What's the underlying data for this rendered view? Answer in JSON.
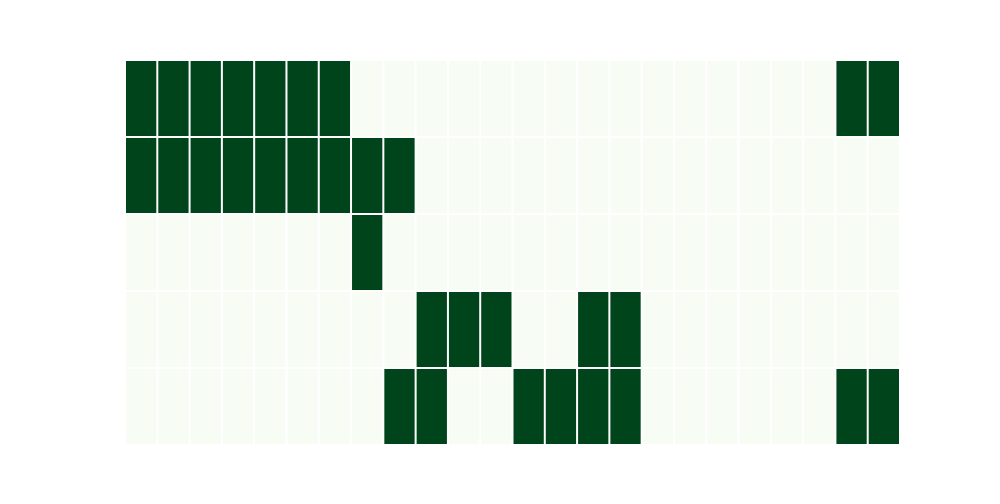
{
  "chart_data": {
    "type": "heatmap",
    "rows": 5,
    "cols": 24,
    "values": [
      [
        1,
        1,
        1,
        1,
        1,
        1,
        1,
        0,
        0,
        0,
        0,
        0,
        0,
        0,
        0,
        0,
        0,
        0,
        0,
        0,
        0,
        0,
        1,
        1
      ],
      [
        1,
        1,
        1,
        1,
        1,
        1,
        1,
        1,
        1,
        0,
        0,
        0,
        0,
        0,
        0,
        0,
        0,
        0,
        0,
        0,
        0,
        0,
        0,
        0
      ],
      [
        0,
        0,
        0,
        0,
        0,
        0,
        0,
        1,
        0,
        0,
        0,
        0,
        0,
        0,
        0,
        0,
        0,
        0,
        0,
        0,
        0,
        0,
        0,
        0
      ],
      [
        0,
        0,
        0,
        0,
        0,
        0,
        0,
        0,
        0,
        1,
        1,
        1,
        0,
        0,
        1,
        1,
        0,
        0,
        0,
        0,
        0,
        0,
        0,
        0
      ],
      [
        0,
        0,
        0,
        0,
        0,
        0,
        0,
        0,
        1,
        1,
        0,
        0,
        1,
        1,
        1,
        1,
        0,
        0,
        0,
        0,
        0,
        0,
        1,
        1
      ]
    ],
    "colors": {
      "on": "#00441b",
      "off": "#f7fcf5",
      "gap": "#ffffff"
    },
    "title": "",
    "xlabel": "",
    "ylabel": "",
    "grid": false,
    "legend": "none"
  }
}
